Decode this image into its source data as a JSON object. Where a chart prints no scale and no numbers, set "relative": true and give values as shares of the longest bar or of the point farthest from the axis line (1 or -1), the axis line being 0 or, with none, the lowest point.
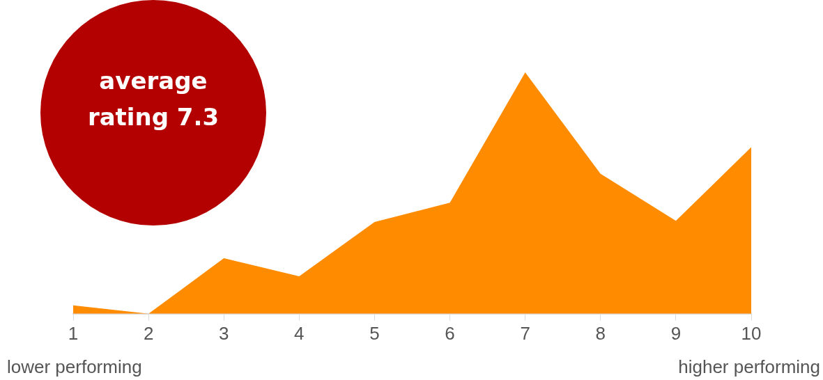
{
  "chart_data": {
    "type": "area",
    "relative": true,
    "categories": [
      "1",
      "2",
      "3",
      "4",
      "5",
      "6",
      "7",
      "8",
      "9",
      "10"
    ],
    "series": [
      {
        "color": "#ff8c00",
        "values": [
          0.035,
          0,
          0.23,
          0.155,
          0.38,
          0.46,
          1,
          0.58,
          0.385,
          0.69
        ]
      }
    ],
    "legend": false,
    "grid": false,
    "annotations": [
      "average rating 7.3",
      "lower performing",
      "higher performing"
    ]
  }
}
